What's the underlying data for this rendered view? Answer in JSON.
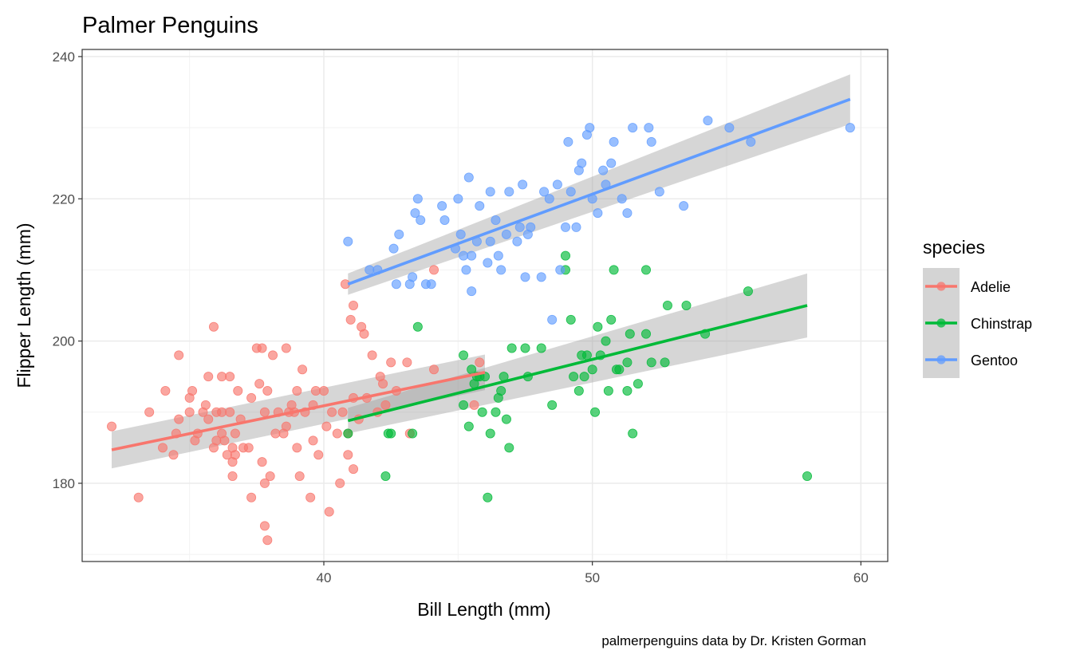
{
  "chart_data": {
    "type": "scatter",
    "title": "Palmer Penguins",
    "caption": "palmerpenguins data by Dr. Kristen Gorman",
    "xlabel": "Bill Length (mm)",
    "ylabel": "Flipper Length (mm)",
    "xlim": [
      31,
      61
    ],
    "ylim": [
      169,
      241
    ],
    "x_ticks": [
      40,
      50,
      60
    ],
    "y_ticks": [
      180,
      200,
      220,
      240
    ],
    "grid": true,
    "legend": {
      "title": "species",
      "position": "right"
    },
    "series": [
      {
        "name": "Adelie",
        "color": "#F8766D",
        "fit": {
          "x": [
            32.1,
            46.0
          ],
          "y": [
            184.7,
            195.6
          ],
          "band": [
            2.6,
            2.5
          ]
        },
        "points": [
          [
            32.1,
            188
          ],
          [
            33.1,
            178
          ],
          [
            33.5,
            190
          ],
          [
            34.0,
            185
          ],
          [
            34.1,
            193
          ],
          [
            34.4,
            184
          ],
          [
            34.5,
            187
          ],
          [
            34.6,
            189
          ],
          [
            34.6,
            198
          ],
          [
            35.0,
            190
          ],
          [
            35.0,
            192
          ],
          [
            35.1,
            193
          ],
          [
            35.2,
            186
          ],
          [
            35.3,
            187
          ],
          [
            35.5,
            190
          ],
          [
            35.6,
            191
          ],
          [
            35.7,
            189
          ],
          [
            35.7,
            195
          ],
          [
            35.9,
            202
          ],
          [
            35.9,
            185
          ],
          [
            36.0,
            190
          ],
          [
            36.0,
            186
          ],
          [
            36.2,
            190
          ],
          [
            36.2,
            195
          ],
          [
            36.2,
            187
          ],
          [
            36.3,
            186
          ],
          [
            36.4,
            184
          ],
          [
            36.5,
            195
          ],
          [
            36.5,
            190
          ],
          [
            36.6,
            181
          ],
          [
            36.6,
            183
          ],
          [
            36.6,
            185
          ],
          [
            36.7,
            184
          ],
          [
            36.7,
            187
          ],
          [
            36.8,
            193
          ],
          [
            36.9,
            189
          ],
          [
            37.0,
            185
          ],
          [
            37.2,
            185
          ],
          [
            37.3,
            178
          ],
          [
            37.3,
            192
          ],
          [
            37.5,
            199
          ],
          [
            37.6,
            194
          ],
          [
            37.7,
            199
          ],
          [
            37.7,
            183
          ],
          [
            37.8,
            174
          ],
          [
            37.8,
            180
          ],
          [
            37.9,
            172
          ],
          [
            37.9,
            193
          ],
          [
            38.0,
            181
          ],
          [
            38.1,
            198
          ],
          [
            38.2,
            187
          ],
          [
            38.3,
            190
          ],
          [
            38.6,
            188
          ],
          [
            38.6,
            199
          ],
          [
            38.7,
            190
          ],
          [
            38.8,
            191
          ],
          [
            38.9,
            190
          ],
          [
            39.0,
            185
          ],
          [
            39.1,
            181
          ],
          [
            39.2,
            196
          ],
          [
            39.3,
            190
          ],
          [
            39.5,
            178
          ],
          [
            39.6,
            186
          ],
          [
            39.6,
            191
          ],
          [
            39.7,
            193
          ],
          [
            39.8,
            184
          ],
          [
            40.1,
            188
          ],
          [
            40.2,
            176
          ],
          [
            40.3,
            190
          ],
          [
            40.5,
            187
          ],
          [
            40.6,
            180
          ],
          [
            40.7,
            190
          ],
          [
            40.8,
            208
          ],
          [
            40.9,
            187
          ],
          [
            41.0,
            203
          ],
          [
            41.1,
            205
          ],
          [
            41.1,
            192
          ],
          [
            41.3,
            189
          ],
          [
            41.4,
            202
          ],
          [
            41.5,
            201
          ],
          [
            41.6,
            192
          ],
          [
            41.8,
            198
          ],
          [
            42.0,
            190
          ],
          [
            42.1,
            195
          ],
          [
            42.2,
            194
          ],
          [
            42.3,
            191
          ],
          [
            42.5,
            197
          ],
          [
            42.7,
            193
          ],
          [
            43.1,
            197
          ],
          [
            43.2,
            187
          ],
          [
            44.1,
            196
          ],
          [
            44.1,
            210
          ],
          [
            45.6,
            191
          ],
          [
            45.8,
            197
          ],
          [
            41.1,
            182
          ],
          [
            40.9,
            184
          ],
          [
            37.8,
            190
          ],
          [
            39.0,
            193
          ],
          [
            38.5,
            187
          ],
          [
            40.0,
            193
          ]
        ]
      },
      {
        "name": "Chinstrap",
        "color": "#00BA38",
        "fit": {
          "x": [
            40.9,
            58.0
          ],
          "y": [
            188.8,
            205.0
          ],
          "band": [
            1.8,
            4.5
          ]
        },
        "points": [
          [
            40.9,
            187
          ],
          [
            42.3,
            181
          ],
          [
            42.4,
            187
          ],
          [
            42.5,
            187
          ],
          [
            43.3,
            187
          ],
          [
            43.5,
            202
          ],
          [
            45.2,
            198
          ],
          [
            45.2,
            191
          ],
          [
            45.4,
            188
          ],
          [
            45.5,
            196
          ],
          [
            45.6,
            194
          ],
          [
            45.7,
            195
          ],
          [
            45.9,
            190
          ],
          [
            46.0,
            195
          ],
          [
            46.1,
            178
          ],
          [
            46.2,
            187
          ],
          [
            46.4,
            190
          ],
          [
            46.5,
            192
          ],
          [
            46.6,
            193
          ],
          [
            46.7,
            195
          ],
          [
            46.8,
            189
          ],
          [
            46.9,
            185
          ],
          [
            47.0,
            199
          ],
          [
            47.5,
            199
          ],
          [
            47.6,
            195
          ],
          [
            48.1,
            199
          ],
          [
            48.5,
            191
          ],
          [
            49.0,
            210
          ],
          [
            49.0,
            212
          ],
          [
            49.2,
            203
          ],
          [
            49.3,
            195
          ],
          [
            49.5,
            193
          ],
          [
            49.6,
            198
          ],
          [
            49.7,
            195
          ],
          [
            50.0,
            196
          ],
          [
            50.1,
            190
          ],
          [
            50.2,
            202
          ],
          [
            50.3,
            198
          ],
          [
            50.5,
            200
          ],
          [
            50.6,
            193
          ],
          [
            50.7,
            203
          ],
          [
            50.8,
            210
          ],
          [
            51.0,
            196
          ],
          [
            51.3,
            197
          ],
          [
            51.4,
            201
          ],
          [
            51.5,
            187
          ],
          [
            51.7,
            194
          ],
          [
            52.0,
            201
          ],
          [
            52.0,
            210
          ],
          [
            52.2,
            197
          ],
          [
            52.7,
            197
          ],
          [
            52.8,
            205
          ],
          [
            53.5,
            205
          ],
          [
            54.2,
            201
          ],
          [
            55.8,
            207
          ],
          [
            58.0,
            181
          ],
          [
            50.9,
            196
          ],
          [
            45.8,
            195
          ],
          [
            51.3,
            193
          ],
          [
            49.8,
            198
          ]
        ]
      },
      {
        "name": "Gentoo",
        "color": "#619CFF",
        "fit": {
          "x": [
            40.9,
            59.6
          ],
          "y": [
            208.0,
            234.0
          ],
          "band": [
            1.5,
            3.5
          ]
        },
        "points": [
          [
            40.9,
            214
          ],
          [
            41.7,
            210
          ],
          [
            42.0,
            210
          ],
          [
            42.6,
            213
          ],
          [
            42.7,
            208
          ],
          [
            42.8,
            215
          ],
          [
            43.2,
            208
          ],
          [
            43.3,
            209
          ],
          [
            43.4,
            218
          ],
          [
            43.5,
            220
          ],
          [
            43.6,
            217
          ],
          [
            43.8,
            208
          ],
          [
            44.0,
            208
          ],
          [
            44.4,
            219
          ],
          [
            44.5,
            217
          ],
          [
            44.9,
            213
          ],
          [
            45.0,
            220
          ],
          [
            45.1,
            215
          ],
          [
            45.2,
            212
          ],
          [
            45.3,
            210
          ],
          [
            45.4,
            223
          ],
          [
            45.5,
            212
          ],
          [
            45.5,
            207
          ],
          [
            45.7,
            214
          ],
          [
            45.8,
            219
          ],
          [
            46.1,
            211
          ],
          [
            46.2,
            214
          ],
          [
            46.2,
            221
          ],
          [
            46.4,
            217
          ],
          [
            46.5,
            212
          ],
          [
            46.6,
            210
          ],
          [
            46.8,
            215
          ],
          [
            46.9,
            221
          ],
          [
            47.2,
            214
          ],
          [
            47.3,
            216
          ],
          [
            47.4,
            222
          ],
          [
            47.5,
            209
          ],
          [
            47.6,
            215
          ],
          [
            47.7,
            216
          ],
          [
            48.1,
            209
          ],
          [
            48.2,
            221
          ],
          [
            48.4,
            220
          ],
          [
            48.5,
            203
          ],
          [
            48.7,
            222
          ],
          [
            48.8,
            210
          ],
          [
            49.0,
            216
          ],
          [
            49.1,
            228
          ],
          [
            49.2,
            221
          ],
          [
            49.4,
            216
          ],
          [
            49.5,
            224
          ],
          [
            49.6,
            225
          ],
          [
            49.8,
            229
          ],
          [
            49.9,
            230
          ],
          [
            50.0,
            220
          ],
          [
            50.2,
            218
          ],
          [
            50.4,
            224
          ],
          [
            50.5,
            222
          ],
          [
            50.7,
            225
          ],
          [
            50.8,
            228
          ],
          [
            51.1,
            220
          ],
          [
            51.3,
            218
          ],
          [
            51.5,
            230
          ],
          [
            52.1,
            230
          ],
          [
            52.2,
            228
          ],
          [
            52.5,
            221
          ],
          [
            53.4,
            219
          ],
          [
            54.3,
            231
          ],
          [
            55.1,
            230
          ],
          [
            55.9,
            228
          ],
          [
            59.6,
            230
          ]
        ]
      }
    ]
  }
}
